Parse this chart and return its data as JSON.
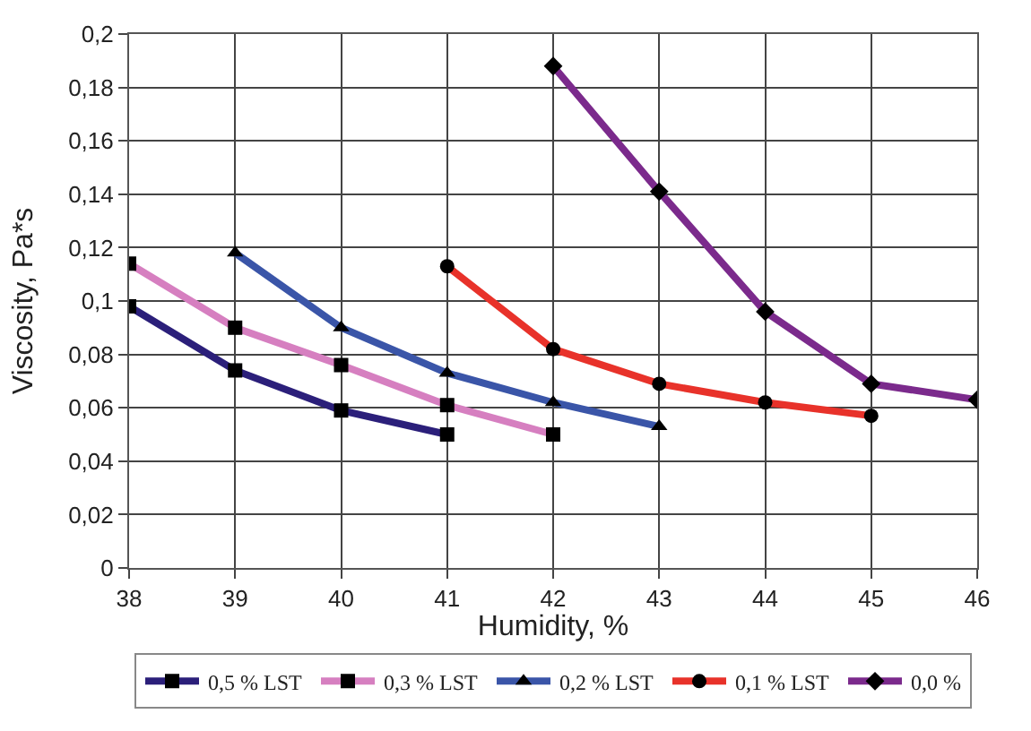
{
  "chart_data": {
    "type": "line",
    "xlabel": "Humidity, %",
    "ylabel": "Viscosity, Pa*s",
    "xlim": [
      38,
      46
    ],
    "xticks": [
      38,
      39,
      40,
      41,
      42,
      43,
      44,
      45,
      46
    ],
    "ylim": [
      0,
      0.2
    ],
    "yticks": [
      0,
      {
        "value": 0.02,
        "label": "0,02"
      },
      {
        "value": 0.04,
        "label": "0,04"
      },
      {
        "value": 0.06,
        "label": "0,06"
      },
      {
        "value": 0.08,
        "label": "0,08"
      },
      {
        "value": 0.1,
        "label": "0,1"
      },
      {
        "value": 0.12,
        "label": "0,12"
      },
      {
        "value": 0.14,
        "label": "0,14"
      },
      {
        "value": 0.16,
        "label": "0,16"
      },
      {
        "value": 0.18,
        "label": "0,18"
      },
      {
        "value": 0.2,
        "label": "0,2"
      }
    ],
    "grid": true,
    "legend": "bottom",
    "line_style": "solid",
    "series": [
      {
        "name": "0,5 % LST",
        "color": "#2b1f7a",
        "marker": "square",
        "x": [
          38,
          39,
          40,
          41
        ],
        "values": [
          0.098,
          0.074,
          0.059,
          0.05
        ]
      },
      {
        "name": "0,3 % LST",
        "color": "#d67fc0",
        "marker": "square",
        "x": [
          38,
          39,
          40,
          41,
          42
        ],
        "values": [
          0.114,
          0.09,
          0.076,
          0.061,
          0.05
        ]
      },
      {
        "name": "0,2 % LST",
        "color": "#3a55a8",
        "marker": "triangle",
        "x": [
          39,
          40,
          41,
          42,
          43
        ],
        "values": [
          0.118,
          0.09,
          0.073,
          0.062,
          0.053
        ]
      },
      {
        "name": "0,1 % LST",
        "color": "#e8322a",
        "marker": "circle",
        "x": [
          41,
          42,
          43,
          44,
          45
        ],
        "values": [
          0.113,
          0.082,
          0.069,
          0.062,
          0.057
        ]
      },
      {
        "name": "0,0 %",
        "color": "#7b2a8c",
        "marker": "diamond",
        "x": [
          42,
          43,
          44,
          45,
          46
        ],
        "values": [
          0.188,
          0.141,
          0.096,
          0.069,
          0.063
        ]
      }
    ]
  }
}
